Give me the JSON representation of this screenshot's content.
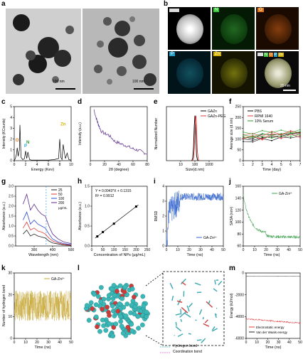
{
  "panels": {
    "a": {
      "label": "a",
      "scale_left": "100 nm",
      "scale_right": "100 nm"
    },
    "b": {
      "label": "b",
      "tiles": [
        "N",
        "O",
        "P",
        "Zn"
      ],
      "merge_tags": [
        "N",
        "O",
        "P",
        "Zn"
      ],
      "scale": "20 nm"
    },
    "c": {
      "label": "c"
    },
    "d": {
      "label": "d"
    },
    "e": {
      "label": "e"
    },
    "f": {
      "label": "f"
    },
    "g": {
      "label": "g"
    },
    "h": {
      "label": "h"
    },
    "i": {
      "label": "i"
    },
    "j": {
      "label": "j"
    },
    "k": {
      "label": "k"
    },
    "l": {
      "label": "l",
      "legend": [
        {
          "name": "Hydrogen bond",
          "color": "#8ad6d6"
        },
        {
          "name": "Coordination bond",
          "color": "#e8a0e0"
        }
      ]
    },
    "m": {
      "label": "m"
    }
  },
  "chart_data": [
    {
      "id": "c",
      "type": "line",
      "xlabel": "Energy (Kev)",
      "ylabel": "Intensity (KCounts)",
      "xlim": [
        0,
        10
      ],
      "xticks": [
        "0",
        "2",
        "4",
        "6",
        "8",
        "10"
      ],
      "ylim": [
        0,
        5
      ],
      "yticks": [
        "0",
        "1",
        "2",
        "3",
        "4",
        "5"
      ],
      "annotations": [
        {
          "text": "O",
          "x": 0.53,
          "y": 1.7,
          "color": "#e07a1a"
        },
        {
          "text": "P",
          "x": 2.0,
          "y": 1.2,
          "color": "#2aa0c8"
        },
        {
          "text": "N",
          "x": 2.4,
          "y": 1.5,
          "color": "#2a9a2a"
        },
        {
          "text": "Zn",
          "x": 8.6,
          "y": 3.2,
          "color": "#d4b400"
        }
      ],
      "x": [
        0,
        0.2,
        0.4,
        0.53,
        0.7,
        0.9,
        1.0,
        1.2,
        1.5,
        1.8,
        2.0,
        2.2,
        2.4,
        2.7,
        3.0,
        4.0,
        5.0,
        6.0,
        7.0,
        7.8,
        8.0,
        8.2,
        8.4,
        8.6,
        8.8,
        9.0,
        9.3,
        9.6,
        10
      ],
      "y": [
        0,
        0.2,
        0.6,
        1.2,
        0.4,
        1.0,
        3.3,
        0.3,
        0.1,
        0.2,
        0.9,
        0.2,
        0.8,
        0.1,
        0.05,
        0.05,
        0.05,
        0.05,
        0.1,
        0.2,
        2.0,
        0.3,
        0.1,
        1.5,
        0.8,
        0.2,
        0.7,
        0.1,
        0.05
      ]
    },
    {
      "id": "d",
      "type": "line",
      "xlabel": "2θ (degree)",
      "ylabel": "Intensity (a.u.)",
      "xlim": [
        0,
        80
      ],
      "xticks": [
        "0",
        "20",
        "40",
        "60",
        "80"
      ],
      "ylim": [
        0,
        1
      ],
      "color": "#5a2a8a",
      "x": [
        5,
        8,
        10,
        12,
        15,
        20,
        25,
        30,
        35,
        40,
        45,
        50,
        55,
        60,
        65,
        70,
        75,
        80
      ],
      "y": [
        0.95,
        0.8,
        0.72,
        0.65,
        0.55,
        0.5,
        0.48,
        0.42,
        0.35,
        0.33,
        0.3,
        0.28,
        0.25,
        0.22,
        0.2,
        0.18,
        0.15,
        0.13
      ]
    },
    {
      "id": "e",
      "type": "line",
      "xlabel": "Size(d.nm)",
      "ylabel": "Normalized Number",
      "xlim": [
        1,
        10000
      ],
      "xscale": "log",
      "xticks": [
        "10",
        "100",
        "1000"
      ],
      "ylim": [
        0,
        1.2
      ],
      "legend": "top-right",
      "series": [
        {
          "name": "GAZn",
          "color": "#000000",
          "x": [
            60,
            70,
            80,
            90,
            100,
            110,
            120,
            130,
            150,
            170
          ],
          "y": [
            0,
            0.05,
            0.3,
            0.75,
            1.0,
            0.8,
            0.4,
            0.12,
            0.02,
            0
          ]
        },
        {
          "name": "GAZn-PEG",
          "color": "#e23a3a",
          "x": [
            70,
            80,
            90,
            100,
            110,
            120,
            135,
            150,
            170,
            190
          ],
          "y": [
            0,
            0.05,
            0.25,
            0.6,
            0.95,
            1.0,
            0.6,
            0.2,
            0.05,
            0
          ]
        }
      ]
    },
    {
      "id": "f",
      "type": "line",
      "xlabel": "Time (day)",
      "ylabel": "Average size (d.nm)",
      "xlim": [
        1,
        7
      ],
      "xticks": [
        "1",
        "2",
        "3",
        "4",
        "5",
        "6",
        "7"
      ],
      "ylim": [
        0,
        250
      ],
      "yticks": [
        "0",
        "50",
        "100",
        "150",
        "200",
        "250"
      ],
      "legend": "top-left",
      "series": [
        {
          "name": "PBS",
          "color": "#000000",
          "x": [
            1,
            2,
            3,
            4,
            5,
            6,
            7
          ],
          "y": [
            100,
            95,
            110,
            105,
            115,
            120,
            125
          ]
        },
        {
          "name": "RPMI 1640",
          "color": "#e23a3a",
          "x": [
            1,
            2,
            3,
            4,
            5,
            6,
            7
          ],
          "y": [
            110,
            120,
            105,
            125,
            115,
            130,
            120
          ]
        },
        {
          "name": "10% Serum",
          "color": "#2a9a2a",
          "x": [
            1,
            2,
            3,
            4,
            5,
            6,
            7
          ],
          "y": [
            120,
            115,
            125,
            118,
            130,
            122,
            135
          ]
        }
      ]
    },
    {
      "id": "g",
      "type": "line",
      "xlabel": "Wavelength (nm)",
      "ylabel": "Absorbance (a.u.)",
      "xlim": [
        200,
        500
      ],
      "xticks": [
        "300",
        "400",
        "500"
      ],
      "ylim": [
        0,
        3.0
      ],
      "yticks": [
        "0.0",
        "0.5",
        "1.0",
        "1.5",
        "2.0",
        "2.5",
        "3.0"
      ],
      "legend": "top-right",
      "legend_unit": "μg/mL",
      "series": [
        {
          "name": "25",
          "color": "#222222",
          "x": [
            240,
            260,
            280,
            300,
            320,
            340,
            360,
            380,
            400,
            430,
            460,
            500
          ],
          "y": [
            0.6,
            0.8,
            0.5,
            0.6,
            0.5,
            0.45,
            0.4,
            0.25,
            0.15,
            0.1,
            0.05,
            0.03
          ]
        },
        {
          "name": "50",
          "color": "#e23a3a",
          "x": [
            240,
            260,
            280,
            300,
            320,
            340,
            360,
            380,
            400,
            430,
            460,
            500
          ],
          "y": [
            0.9,
            1.2,
            0.8,
            0.9,
            0.75,
            0.7,
            0.6,
            0.4,
            0.25,
            0.15,
            0.08,
            0.05
          ]
        },
        {
          "name": "100",
          "color": "#2a4ad0",
          "x": [
            240,
            260,
            280,
            300,
            320,
            340,
            360,
            380,
            400,
            430,
            460,
            500
          ],
          "y": [
            1.3,
            1.7,
            1.1,
            1.3,
            1.1,
            1.0,
            0.9,
            0.6,
            0.35,
            0.2,
            0.12,
            0.07
          ]
        },
        {
          "name": "200",
          "color": "#5a2a8a",
          "x": [
            240,
            260,
            280,
            300,
            320,
            340,
            360,
            380,
            400,
            430,
            460,
            500
          ],
          "y": [
            2.1,
            2.6,
            1.8,
            2.1,
            1.8,
            1.6,
            1.5,
            1.0,
            0.6,
            0.35,
            0.2,
            0.12
          ]
        }
      ]
    },
    {
      "id": "h",
      "type": "scatter",
      "xlabel": "Concentration of NPs (μg/mL)",
      "ylabel": "Absorbance (a.u.)",
      "xlim": [
        0,
        250
      ],
      "xticks": [
        "0",
        "50",
        "100",
        "150",
        "200",
        "250"
      ],
      "ylim": [
        0,
        1.5
      ],
      "yticks": [
        "0.0",
        "0.5",
        "1.0",
        "1.5"
      ],
      "annotations": [
        {
          "text": "Y = 0.0043*X + 0.1315"
        },
        {
          "text": "R² = 0.9912"
        }
      ],
      "x": [
        25,
        50,
        100,
        200
      ],
      "y": [
        0.24,
        0.35,
        0.56,
        0.99
      ]
    },
    {
      "id": "i",
      "type": "line",
      "xlabel": "Time (ns)",
      "ylabel": "RMSD",
      "xlim": [
        0,
        50
      ],
      "xticks": [
        "0",
        "10",
        "20",
        "30",
        "40",
        "50"
      ],
      "ylim": [
        0,
        4
      ],
      "yticks": [
        "0",
        "1",
        "2",
        "3",
        "4"
      ],
      "legend": "bottom-right",
      "series": [
        {
          "name": "GA-Zn²⁺",
          "color": "#3a6ad0"
        }
      ]
    },
    {
      "id": "j",
      "type": "line",
      "xlabel": "Time (ns)",
      "ylabel": "SASA (nm²)",
      "xlim": [
        0,
        50
      ],
      "xticks": [
        "0",
        "10",
        "20",
        "30",
        "40",
        "50"
      ],
      "ylim": [
        60,
        160
      ],
      "yticks": [
        "60",
        "80",
        "100",
        "120",
        "140",
        "160"
      ],
      "legend": "top-right",
      "series": [
        {
          "name": "GA-Zn²⁺",
          "color": "#3aa04a"
        }
      ]
    },
    {
      "id": "k",
      "type": "line",
      "xlabel": "Time (ns)",
      "ylabel": "Number of hydrogen bond",
      "xlim": [
        0,
        50
      ],
      "xticks": [
        "0",
        "10",
        "20",
        "30",
        "40",
        "50"
      ],
      "ylim": [
        0,
        30
      ],
      "yticks": [
        "0",
        "10",
        "20",
        "30"
      ],
      "legend": "top-right",
      "series": [
        {
          "name": "GA-Zn²⁺",
          "color": "#c8a838"
        }
      ]
    },
    {
      "id": "m",
      "type": "line",
      "xlabel": "Time (ns)",
      "ylabel": "Energy (kJ/mol)",
      "xlim": [
        0,
        50
      ],
      "xticks": [
        "0",
        "10",
        "20",
        "30",
        "40",
        "50"
      ],
      "ylim": [
        -6000,
        0
      ],
      "yticks": [
        "0",
        "-2000",
        "-4000",
        "-6000"
      ],
      "legend": "bottom-left",
      "series": [
        {
          "name": "Electrostatic energy",
          "color": "#e23a3a"
        },
        {
          "name": "Van der Waals energy",
          "color": "#222222"
        }
      ]
    }
  ]
}
